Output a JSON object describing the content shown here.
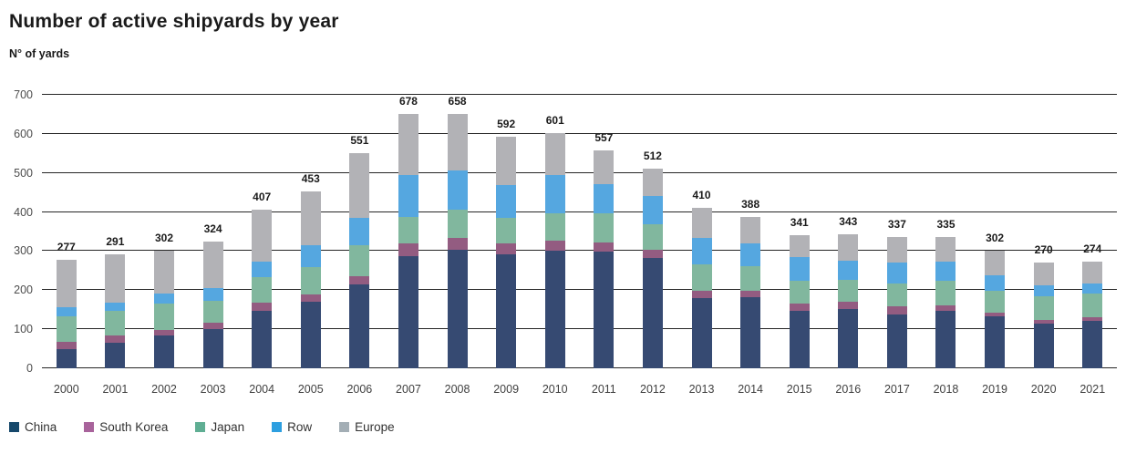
{
  "header": {
    "title": "Number of active shipyards by year",
    "subtitle": "N° of yards"
  },
  "chart_data": {
    "type": "bar",
    "stacked": true,
    "title": "Number of active shipyards by year",
    "ylabel": "N° of yards",
    "xlabel": "",
    "ylim": [
      0,
      700
    ],
    "yticks": [
      0,
      100,
      200,
      300,
      400,
      500,
      600,
      700
    ],
    "grid": true,
    "legend_position": "bottom-left",
    "categories": [
      "2000",
      "2001",
      "2002",
      "2003",
      "2004",
      "2005",
      "2006",
      "2007",
      "2008",
      "2009",
      "2010",
      "2011",
      "2012",
      "2013",
      "2014",
      "2015",
      "2016",
      "2017",
      "2018",
      "2019",
      "2020",
      "2021"
    ],
    "totals": [
      277,
      291,
      302,
      324,
      407,
      453,
      551,
      678,
      658,
      592,
      601,
      557,
      512,
      410,
      388,
      341,
      343,
      337,
      335,
      302,
      270,
      274
    ],
    "series": [
      {
        "name": "China",
        "color": "#364a72",
        "legend_color": "#16486b",
        "values": [
          50,
          65,
          83,
          100,
          147,
          171,
          215,
          300,
          306,
          291,
          300,
          299,
          282,
          180,
          182,
          147,
          152,
          138,
          148,
          132,
          114,
          122
        ]
      },
      {
        "name": "South Korea",
        "color": "#935c81",
        "legend_color": "#a8639b",
        "values": [
          18,
          20,
          14,
          16,
          22,
          19,
          21,
          32,
          31,
          29,
          27,
          23,
          21,
          18,
          16,
          18,
          19,
          21,
          13,
          10,
          9,
          9
        ]
      },
      {
        "name": "Japan",
        "color": "#81b79e",
        "legend_color": "#5fae93",
        "values": [
          66,
          62,
          68,
          57,
          64,
          68,
          80,
          72,
          74,
          65,
          70,
          75,
          66,
          68,
          64,
          60,
          56,
          57,
          62,
          57,
          61,
          61
        ]
      },
      {
        "name": "Row",
        "color": "#55a7e0",
        "legend_color": "#2d9fe0",
        "values": [
          23,
          20,
          26,
          33,
          41,
          57,
          68,
          111,
          101,
          83,
          98,
          75,
          72,
          68,
          58,
          59,
          48,
          55,
          49,
          40,
          29,
          25
        ]
      },
      {
        "name": "Europe",
        "color": "#b2b2b6",
        "legend_color": "#a3aeb5",
        "values": [
          120,
          124,
          111,
          118,
          133,
          138,
          167,
          163,
          146,
          124,
          106,
          85,
          71,
          76,
          68,
          57,
          68,
          66,
          63,
          63,
          57,
          57
        ]
      }
    ]
  }
}
